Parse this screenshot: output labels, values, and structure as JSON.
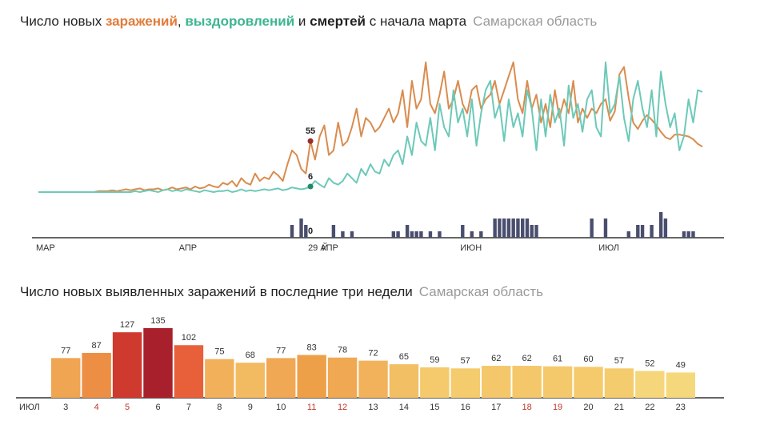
{
  "chart_data": [
    {
      "type": "line",
      "title_parts": [
        "Число новых ",
        ", ",
        " и ",
        " с начала марта"
      ],
      "subtitle": "Самарская область",
      "categories": [
        "МАР",
        null,
        null,
        null,
        null,
        null,
        null,
        null,
        null,
        null,
        null,
        null,
        null,
        null,
        null,
        null,
        null,
        null,
        null,
        null,
        null,
        null,
        null,
        null,
        null,
        null,
        null,
        null,
        null,
        null,
        null,
        "АПР",
        null,
        null,
        null,
        null,
        null,
        null,
        null,
        null,
        null,
        null,
        null,
        null,
        null,
        null,
        null,
        null,
        null,
        null,
        null,
        null,
        null,
        null,
        null,
        null,
        null,
        null,
        null,
        "29 АПР",
        null,
        null,
        "Й",
        null,
        null,
        null,
        null,
        null,
        null,
        null,
        null,
        null,
        null,
        null,
        null,
        null,
        null,
        null,
        null,
        null,
        null,
        null,
        null,
        null,
        null,
        null,
        null,
        null,
        null,
        null,
        null,
        null,
        "ИЮН",
        null,
        null,
        null,
        null,
        null,
        null,
        null,
        null,
        null,
        null,
        null,
        null,
        null,
        null,
        null,
        null,
        null,
        null,
        null,
        null,
        null,
        null,
        null,
        null,
        null,
        null,
        null,
        null,
        null,
        "ИЮЛ",
        null,
        null,
        null,
        null,
        null,
        null,
        null,
        null,
        null,
        null,
        null,
        null,
        null,
        null,
        null,
        null,
        null,
        null,
        null,
        null,
        null,
        null
      ],
      "ylim": [
        0,
        145
      ],
      "y2lim": [
        0,
        4
      ],
      "series": [
        {
          "name": "заражений",
          "color": "#d98c4e",
          "title_color": "#e07b39",
          "values": [
            0,
            0,
            0,
            0,
            0,
            0,
            0,
            0,
            0,
            0,
            0,
            0,
            0,
            1,
            1,
            1,
            2,
            1,
            2,
            3,
            2,
            3,
            4,
            2,
            3,
            3,
            4,
            2,
            3,
            5,
            3,
            4,
            5,
            3,
            6,
            4,
            5,
            8,
            6,
            5,
            10,
            8,
            12,
            6,
            15,
            10,
            8,
            20,
            12,
            16,
            14,
            22,
            18,
            12,
            30,
            45,
            40,
            25,
            20,
            55,
            35,
            60,
            72,
            40,
            45,
            75,
            50,
            55,
            70,
            90,
            60,
            80,
            75,
            65,
            70,
            80,
            90,
            75,
            85,
            110,
            70,
            120,
            90,
            100,
            140,
            95,
            85,
            105,
            130,
            90,
            100,
            120,
            95,
            85,
            110,
            115,
            90,
            100,
            105,
            120,
            95,
            110,
            125,
            140,
            100,
            85,
            120,
            90,
            105,
            75,
            95,
            70,
            110,
            80,
            100,
            85,
            120,
            75,
            90,
            80,
            90,
            85,
            95,
            100,
            77,
            87,
            127,
            135,
            102,
            75,
            68,
            77,
            83,
            78,
            72,
            65,
            59,
            57,
            62,
            62,
            61,
            60,
            57,
            52,
            49
          ]
        },
        {
          "name": "выздоровлений",
          "color": "#6cc9b8",
          "title_color": "#3bb58f",
          "values": [
            0,
            0,
            0,
            0,
            0,
            0,
            0,
            0,
            0,
            0,
            0,
            0,
            0,
            0,
            0,
            0,
            0,
            0,
            0,
            0,
            0,
            1,
            0,
            1,
            2,
            1,
            0,
            2,
            3,
            1,
            2,
            1,
            3,
            2,
            1,
            0,
            2,
            1,
            0,
            1,
            1,
            2,
            0,
            1,
            3,
            1,
            2,
            1,
            2,
            3,
            2,
            3,
            4,
            2,
            3,
            5,
            4,
            3,
            4,
            6,
            12,
            8,
            5,
            15,
            10,
            8,
            12,
            20,
            15,
            10,
            25,
            18,
            30,
            22,
            20,
            35,
            28,
            40,
            45,
            30,
            60,
            40,
            75,
            55,
            50,
            80,
            45,
            95,
            70,
            60,
            110,
            75,
            90,
            60,
            100,
            50,
            85,
            110,
            120,
            80,
            95,
            55,
            100,
            70,
            85,
            60,
            110,
            90,
            45,
            100,
            60,
            105,
            75,
            90,
            50,
            115,
            80,
            95,
            65,
            100,
            110,
            70,
            60,
            140,
            85,
            95,
            125,
            80,
            55,
            100,
            120,
            90,
            70,
            110,
            60,
            130,
            95,
            70,
            85,
            45,
            60,
            100,
            75,
            110,
            108
          ]
        },
        {
          "name": "смертей",
          "color": "#4a4e6e",
          "title_color": "#222222",
          "axis": "y2",
          "values": [
            0,
            0,
            0,
            0,
            0,
            0,
            0,
            0,
            0,
            0,
            0,
            0,
            0,
            0,
            0,
            0,
            0,
            0,
            0,
            0,
            0,
            0,
            0,
            0,
            0,
            0,
            0,
            0,
            0,
            0,
            0,
            0,
            0,
            0,
            0,
            0,
            0,
            0,
            0,
            0,
            0,
            0,
            0,
            0,
            0,
            0,
            0,
            0,
            0,
            0,
            0,
            0,
            0,
            0,
            0,
            2,
            0,
            3,
            2,
            0,
            0,
            0,
            0,
            0,
            2,
            0,
            1,
            0,
            1,
            0,
            0,
            0,
            0,
            0,
            0,
            0,
            0,
            1,
            1,
            0,
            2,
            1,
            1,
            1,
            0,
            1,
            0,
            1,
            0,
            0,
            0,
            0,
            2,
            0,
            1,
            0,
            1,
            0,
            0,
            3,
            3,
            3,
            3,
            3,
            3,
            3,
            3,
            2,
            2,
            0,
            0,
            0,
            0,
            0,
            0,
            0,
            0,
            0,
            0,
            0,
            3,
            0,
            0,
            3,
            0,
            0,
            0,
            0,
            1,
            0,
            2,
            2,
            0,
            2,
            0,
            4,
            3,
            0,
            0,
            0,
            1,
            1,
            1,
            0,
            0
          ]
        }
      ]
    },
    {
      "type": "bar",
      "title": "Число новых выявленных заражений в последние три недели",
      "subtitle": "Самарская область",
      "xlabel": "ИЮЛ",
      "categories": [
        "3",
        "4",
        "5",
        "6",
        "7",
        "8",
        "9",
        "10",
        "11",
        "12",
        "13",
        "14",
        "15",
        "16",
        "17",
        "18",
        "19",
        "20",
        "21",
        "22",
        "23"
      ],
      "values": [
        77,
        87,
        127,
        135,
        102,
        75,
        68,
        77,
        83,
        78,
        72,
        65,
        59,
        57,
        62,
        62,
        61,
        60,
        57,
        52,
        49
      ],
      "colors": [
        "#f0a552",
        "#ec8f45",
        "#cf3a2f",
        "#a8202b",
        "#e8603a",
        "#f2b05a",
        "#f3bb61",
        "#f0a855",
        "#eea048",
        "#f0a853",
        "#f2b25c",
        "#f2bf64",
        "#f4ca6c",
        "#f4cc6e",
        "#f4c86a",
        "#f4c86a",
        "#f4c96b",
        "#f4ca6c",
        "#f4cc6e",
        "#f6d67a",
        "#f6d87c"
      ],
      "label_colors": [
        "#333333",
        "#c0392b",
        "#c0392b",
        "#333333",
        "#333333",
        "#333333",
        "#333333",
        "#333333",
        "#c0392b",
        "#c0392b",
        "#333333",
        "#333333",
        "#333333",
        "#333333",
        "#333333",
        "#c0392b",
        "#c0392b",
        "#333333",
        "#333333",
        "#333333",
        "#333333"
      ],
      "ylim": [
        0,
        135
      ]
    }
  ]
}
